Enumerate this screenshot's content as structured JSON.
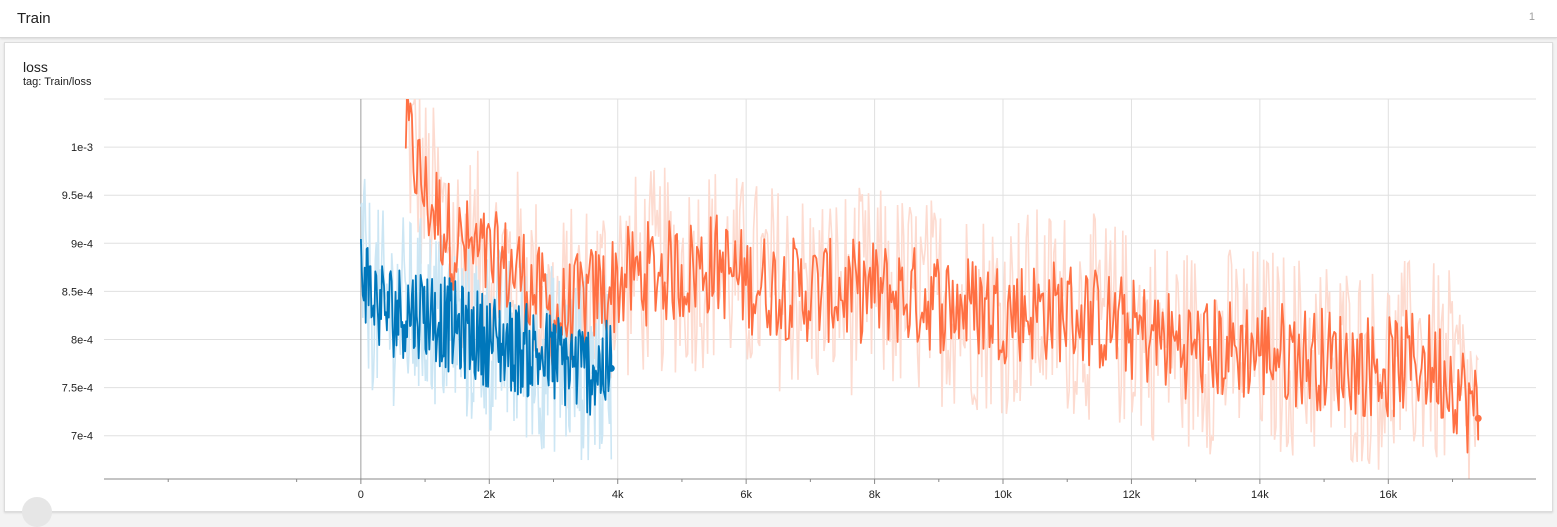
{
  "section": {
    "title": "Train",
    "count": "1"
  },
  "card": {
    "title": "loss",
    "tag": "tag: Train/loss"
  },
  "colors": {
    "blue_smooth": "#0077bb",
    "blue_raw": "#cce6f4",
    "orange_smooth": "#ff7043",
    "orange_raw": "#fddbd0",
    "grid": "#e0e0e0",
    "axis": "#888888"
  },
  "chart_data": {
    "type": "line",
    "title": "loss",
    "xlabel": "",
    "ylabel": "",
    "xlim": [
      -4000,
      18300
    ],
    "ylim": [
      0.000655,
      0.00105
    ],
    "grid": true,
    "x_ticks": [
      {
        "value": 0,
        "label": "0"
      },
      {
        "value": 2000,
        "label": "2k"
      },
      {
        "value": 4000,
        "label": "4k"
      },
      {
        "value": 6000,
        "label": "6k"
      },
      {
        "value": 8000,
        "label": "8k"
      },
      {
        "value": 10000,
        "label": "10k"
      },
      {
        "value": 12000,
        "label": "12k"
      },
      {
        "value": 14000,
        "label": "14k"
      },
      {
        "value": 16000,
        "label": "16k"
      }
    ],
    "y_ticks": [
      {
        "value": 0.001,
        "label": "1e-3"
      },
      {
        "value": 0.00095,
        "label": "9.5e-4"
      },
      {
        "value": 0.0009,
        "label": "9e-4"
      },
      {
        "value": 0.00085,
        "label": "8.5e-4"
      },
      {
        "value": 0.0008,
        "label": "8e-4"
      },
      {
        "value": 0.00075,
        "label": "7.5e-4"
      },
      {
        "value": 0.0007,
        "label": "7e-4"
      }
    ],
    "series": [
      {
        "color_key": "orange",
        "x": [
          700,
          1000,
          1500,
          2000,
          2500,
          3000,
          3500,
          4000,
          4500,
          5000,
          5500,
          6000,
          7000,
          8000,
          9000,
          10000,
          11000,
          12000,
          13000,
          14000,
          15000,
          16000,
          16500,
          17000,
          17400
        ],
        "y": [
          0.00102,
          0.00095,
          0.0009,
          0.00088,
          0.00087,
          0.00082,
          0.00084,
          0.00086,
          0.00087,
          0.00087,
          0.00088,
          0.00086,
          0.00085,
          0.00085,
          0.00084,
          0.00083,
          0.00083,
          0.00081,
          0.00079,
          0.00079,
          0.00078,
          0.00077,
          0.00078,
          0.00076,
          0.000718
        ],
        "noise": 5.5e-05,
        "raw_noise": 0.00011
      },
      {
        "color_key": "blue",
        "x": [
          0,
          200,
          500,
          1000,
          1500,
          2000,
          2500,
          3000,
          3500,
          3900
        ],
        "y": [
          0.00088,
          0.00084,
          0.00083,
          0.00083,
          0.00081,
          0.0008,
          0.00079,
          0.00078,
          0.00077,
          0.00077
        ],
        "noise": 5e-05,
        "raw_noise": 0.0001
      }
    ]
  }
}
